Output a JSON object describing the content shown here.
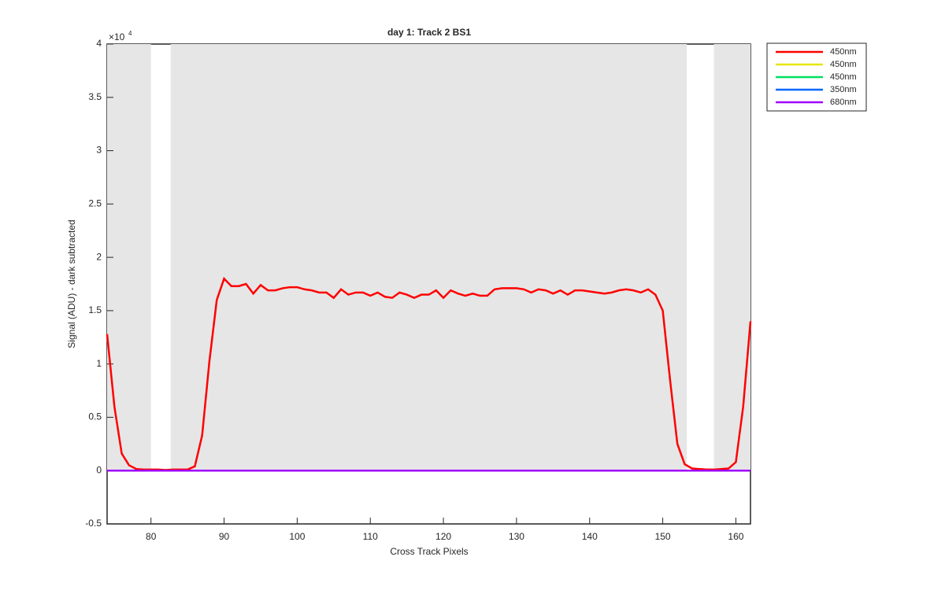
{
  "chart_data": {
    "type": "line",
    "title": "day 1: Track 2  BS1",
    "x_label": "Cross Track Pixels",
    "y_label": "Signal (ADU) - dark subtracted",
    "y_multiplier": {
      "base": "×10",
      "exponent": "4"
    },
    "x": [
      74,
      75,
      76,
      77,
      78,
      79,
      80,
      81,
      82,
      83,
      84,
      85,
      86,
      87,
      88,
      89,
      90,
      91,
      92,
      93,
      94,
      95,
      96,
      97,
      98,
      99,
      100,
      101,
      102,
      103,
      104,
      105,
      106,
      107,
      108,
      109,
      110,
      111,
      112,
      113,
      114,
      115,
      116,
      117,
      118,
      119,
      120,
      121,
      122,
      123,
      124,
      125,
      126,
      127,
      128,
      129,
      130,
      131,
      132,
      133,
      134,
      135,
      136,
      137,
      138,
      139,
      140,
      141,
      142,
      143,
      144,
      145,
      146,
      147,
      148,
      149,
      150,
      151,
      152,
      153,
      154,
      155,
      156,
      157,
      158,
      159,
      160,
      161,
      162
    ],
    "series": [
      {
        "name": "450nm",
        "color": "#ff0000",
        "values": [
          1.28,
          0.6,
          0.16,
          0.05,
          0.015,
          0.01,
          0.01,
          0.01,
          0.005,
          0.01,
          0.01,
          0.01,
          0.04,
          0.33,
          1.03,
          1.6,
          1.8,
          1.73,
          1.73,
          1.75,
          1.66,
          1.74,
          1.69,
          1.69,
          1.71,
          1.72,
          1.72,
          1.7,
          1.69,
          1.67,
          1.67,
          1.62,
          1.7,
          1.65,
          1.67,
          1.67,
          1.64,
          1.67,
          1.63,
          1.62,
          1.67,
          1.65,
          1.62,
          1.65,
          1.65,
          1.69,
          1.62,
          1.69,
          1.66,
          1.64,
          1.66,
          1.64,
          1.64,
          1.7,
          1.71,
          1.71,
          1.71,
          1.7,
          1.67,
          1.7,
          1.69,
          1.66,
          1.69,
          1.65,
          1.69,
          1.69,
          1.68,
          1.67,
          1.66,
          1.67,
          1.69,
          1.7,
          1.69,
          1.67,
          1.7,
          1.65,
          1.5,
          0.85,
          0.25,
          0.06,
          0.02,
          0.015,
          0.01,
          0.01,
          0.015,
          0.02,
          0.08,
          0.6,
          1.4
        ]
      },
      {
        "name": "450nm",
        "color": "#e6e600",
        "values": [
          0,
          0,
          0,
          0,
          0,
          0,
          0,
          0,
          0,
          0,
          0,
          0,
          0,
          0,
          0,
          0,
          0,
          0,
          0,
          0,
          0,
          0,
          0,
          0,
          0,
          0,
          0,
          0,
          0,
          0,
          0,
          0,
          0,
          0,
          0,
          0,
          0,
          0,
          0,
          0,
          0,
          0,
          0,
          0,
          0,
          0,
          0,
          0,
          0,
          0,
          0,
          0,
          0,
          0,
          0,
          0,
          0,
          0,
          0,
          0,
          0,
          0,
          0,
          0,
          0,
          0,
          0,
          0,
          0,
          0,
          0,
          0,
          0,
          0,
          0,
          0,
          0,
          0,
          0,
          0,
          0,
          0,
          0,
          0,
          0,
          0,
          0,
          0,
          0
        ]
      },
      {
        "name": "450nm",
        "color": "#00e060",
        "values": [
          0,
          0,
          0,
          0,
          0,
          0,
          0,
          0,
          0,
          0,
          0,
          0,
          0,
          0,
          0,
          0,
          0,
          0,
          0,
          0,
          0,
          0,
          0,
          0,
          0,
          0,
          0,
          0,
          0,
          0,
          0,
          0,
          0,
          0,
          0,
          0,
          0,
          0,
          0,
          0,
          0,
          0,
          0,
          0,
          0,
          0,
          0,
          0,
          0,
          0,
          0,
          0,
          0,
          0,
          0,
          0,
          0,
          0,
          0,
          0,
          0,
          0,
          0,
          0,
          0,
          0,
          0,
          0,
          0,
          0,
          0,
          0,
          0,
          0,
          0,
          0,
          0,
          0,
          0,
          0,
          0,
          0,
          0,
          0,
          0,
          0,
          0,
          0,
          0
        ]
      },
      {
        "name": "350nm",
        "color": "#0066ff",
        "values": [
          0,
          0,
          0,
          0,
          0,
          0,
          0,
          0,
          0,
          0,
          0,
          0,
          0,
          0,
          0,
          0,
          0,
          0,
          0,
          0,
          0,
          0,
          0,
          0,
          0,
          0,
          0,
          0,
          0,
          0,
          0,
          0,
          0,
          0,
          0,
          0,
          0,
          0,
          0,
          0,
          0,
          0,
          0,
          0,
          0,
          0,
          0,
          0,
          0,
          0,
          0,
          0,
          0,
          0,
          0,
          0,
          0,
          0,
          0,
          0,
          0,
          0,
          0,
          0,
          0,
          0,
          0,
          0,
          0,
          0,
          0,
          0,
          0,
          0,
          0,
          0,
          0,
          0,
          0,
          0,
          0,
          0,
          0,
          0,
          0,
          0,
          0,
          0,
          0
        ]
      },
      {
        "name": "680nm",
        "color": "#a000ff",
        "values": [
          0,
          0,
          0,
          0,
          0,
          0,
          0,
          0,
          0,
          0,
          0,
          0,
          0,
          0,
          0,
          0,
          0,
          0,
          0,
          0,
          0,
          0,
          0,
          0,
          0,
          0,
          0,
          0,
          0,
          0,
          0,
          0,
          0,
          0,
          0,
          0,
          0,
          0,
          0,
          0,
          0,
          0,
          0,
          0,
          0,
          0,
          0,
          0,
          0,
          0,
          0,
          0,
          0,
          0,
          0,
          0,
          0,
          0,
          0,
          0,
          0,
          0,
          0,
          0,
          0,
          0,
          0,
          0,
          0,
          0,
          0,
          0,
          0,
          0,
          0,
          0,
          0,
          0,
          0,
          0,
          0,
          0,
          0,
          0,
          0,
          0,
          0,
          0,
          0
        ]
      }
    ],
    "shaded_regions": [
      [
        74,
        80
      ],
      [
        82.7,
        153.3
      ],
      [
        157,
        162
      ]
    ],
    "shade_color": "#e6e6e6",
    "shade_ylim": [
      0,
      4
    ],
    "xlim": [
      74,
      162
    ],
    "ylim": [
      -0.5,
      4
    ],
    "xticks": [
      80,
      90,
      100,
      110,
      120,
      130,
      140,
      150,
      160
    ],
    "yticks": [
      -0.5,
      0,
      0.5,
      1,
      1.5,
      2,
      2.5,
      3,
      3.5,
      4
    ],
    "legend": "outside-top-right"
  }
}
